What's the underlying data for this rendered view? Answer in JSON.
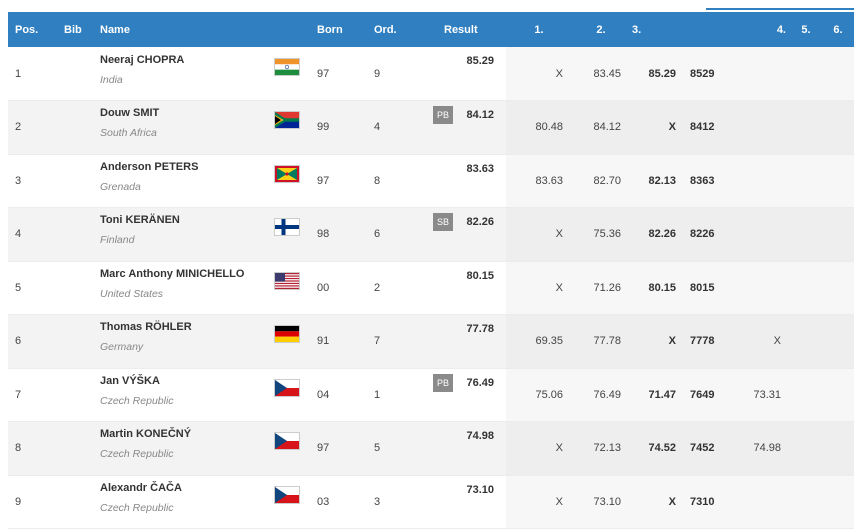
{
  "header": {
    "pos": "Pos.",
    "bib": "Bib",
    "name": "Name",
    "born": "Born",
    "ord": "Ord.",
    "result": "Result",
    "a1": "1.",
    "a2": "2.",
    "a3": "3.",
    "a4": "4.",
    "a5": "5.",
    "a6": "6."
  },
  "rows": [
    {
      "pos": "1",
      "name": "Neeraj CHOPRA",
      "country": "India",
      "flag": "india-flag-icon",
      "born": "97",
      "ord": "9",
      "badge": "",
      "result": "85.29",
      "a1": "X",
      "a2": "83.45",
      "a3": "85.29",
      "pts": "8529",
      "a4": "",
      "a5": "",
      "a6": ""
    },
    {
      "pos": "2",
      "name": "Douw SMIT",
      "country": "South Africa",
      "flag": "south-africa-flag-icon",
      "born": "99",
      "ord": "4",
      "badge": "PB",
      "result": "84.12",
      "a1": "80.48",
      "a2": "84.12",
      "a3": "X",
      "pts": "8412",
      "a4": "",
      "a5": "",
      "a6": ""
    },
    {
      "pos": "3",
      "name": "Anderson PETERS",
      "country": "Grenada",
      "flag": "grenada-flag-icon",
      "born": "97",
      "ord": "8",
      "badge": "",
      "result": "83.63",
      "a1": "83.63",
      "a2": "82.70",
      "a3": "82.13",
      "pts": "8363",
      "a4": "",
      "a5": "",
      "a6": ""
    },
    {
      "pos": "4",
      "name": "Toni KERÄNEN",
      "country": "Finland",
      "flag": "finland-flag-icon",
      "born": "98",
      "ord": "6",
      "badge": "SB",
      "result": "82.26",
      "a1": "X",
      "a2": "75.36",
      "a3": "82.26",
      "pts": "8226",
      "a4": "",
      "a5": "",
      "a6": ""
    },
    {
      "pos": "5",
      "name": "Marc Anthony MINICHELLO",
      "country": "United States",
      "flag": "usa-flag-icon",
      "born": "00",
      "ord": "2",
      "badge": "",
      "result": "80.15",
      "a1": "X",
      "a2": "71.26",
      "a3": "80.15",
      "pts": "8015",
      "a4": "",
      "a5": "",
      "a6": ""
    },
    {
      "pos": "6",
      "name": "Thomas RÖHLER",
      "country": "Germany",
      "flag": "germany-flag-icon",
      "born": "91",
      "ord": "7",
      "badge": "",
      "result": "77.78",
      "a1": "69.35",
      "a2": "77.78",
      "a3": "X",
      "pts": "7778",
      "a4": "X",
      "a5": "",
      "a6": ""
    },
    {
      "pos": "7",
      "name": "Jan VÝŠKA",
      "country": "Czech Republic",
      "flag": "czech-flag-icon",
      "born": "04",
      "ord": "1",
      "badge": "PB",
      "result": "76.49",
      "a1": "75.06",
      "a2": "76.49",
      "a3": "71.47",
      "pts": "7649",
      "a4": "73.31",
      "a5": "",
      "a6": ""
    },
    {
      "pos": "8",
      "name": "Martin KONEČNÝ",
      "country": "Czech Republic",
      "flag": "czech-flag-icon",
      "born": "97",
      "ord": "5",
      "badge": "",
      "result": "74.98",
      "a1": "X",
      "a2": "72.13",
      "a3": "74.52",
      "pts": "7452",
      "a4": "74.98",
      "a5": "",
      "a6": ""
    },
    {
      "pos": "9",
      "name": "Alexandr ČAČA",
      "country": "Czech Republic",
      "flag": "czech-flag-icon",
      "born": "03",
      "ord": "3",
      "badge": "",
      "result": "73.10",
      "a1": "X",
      "a2": "73.10",
      "a3": "X",
      "pts": "7310",
      "a4": "",
      "a5": "",
      "a6": ""
    }
  ]
}
